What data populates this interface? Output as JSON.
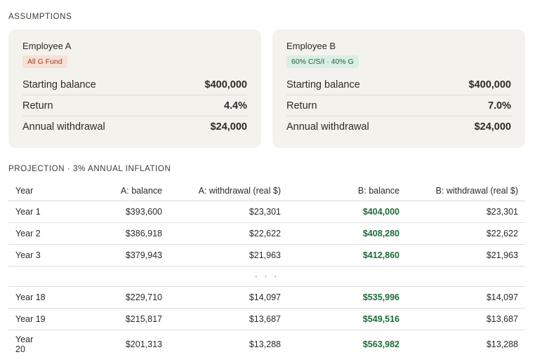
{
  "assumptions": {
    "title": "ASSUMPTIONS",
    "cards": [
      {
        "name": "Employee A",
        "badge": "All G Fund",
        "rows": [
          {
            "label": "Starting balance",
            "value": "$400,000"
          },
          {
            "label": "Return",
            "value": "4.4%"
          },
          {
            "label": "Annual withdrawal",
            "value": "$24,000"
          }
        ]
      },
      {
        "name": "Employee B",
        "badge": "60% C/S/I · 40% G",
        "rows": [
          {
            "label": "Starting balance",
            "value": "$400,000"
          },
          {
            "label": "Return",
            "value": "7.0%"
          },
          {
            "label": "Annual withdrawal",
            "value": "$24,000"
          }
        ]
      }
    ]
  },
  "projection": {
    "title": "PROJECTION · 3% ANNUAL INFLATION",
    "headers": [
      "Year",
      "A: balance",
      "A: withdrawal (real $)",
      "B: balance",
      "B: withdrawal (real $)"
    ],
    "rows": [
      [
        "Year 1",
        "$393,600",
        "$23,301",
        "$404,000",
        "$23,301"
      ],
      [
        "Year 2",
        "$386,918",
        "$22,622",
        "$408,280",
        "$22,622"
      ],
      [
        "Year 3",
        "$379,943",
        "$21,963",
        "$412,860",
        "$21,963"
      ]
    ],
    "ellipsis": "· · ·",
    "rows_tail": [
      [
        "Year 18",
        "$229,710",
        "$14,097",
        "$535,996",
        "$14,097"
      ],
      [
        "Year 19",
        "$215,817",
        "$13,687",
        "$549,516",
        "$13,687"
      ],
      [
        "Year 20",
        "$201,313",
        "$13,288",
        "$563,982",
        "$13,288"
      ]
    ]
  },
  "colors": {
    "card_bg": "#f3f2ec",
    "badge_a_bg": "#f7e0d6",
    "badge_a_text": "#a33a26",
    "badge_b_bg": "#d9efe3",
    "badge_b_text": "#1f5e3c",
    "positive_green": "#1d6b3a"
  }
}
